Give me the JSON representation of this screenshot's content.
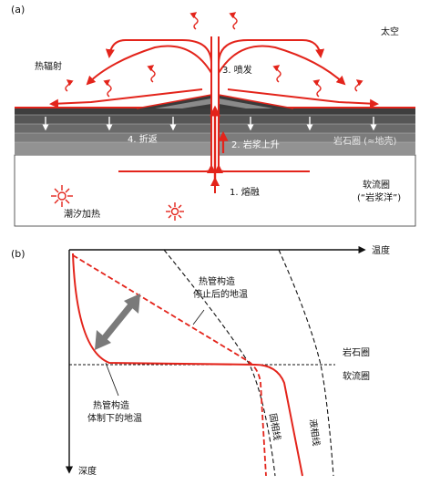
{
  "panel_a": {
    "tag": "(a)",
    "space": "太空",
    "radiation": "热辐射",
    "eruption": "3. 喷发",
    "return_flow": "4. 折返",
    "magma_rise": "2. 岩浆上升",
    "lithosphere": "岩石圈 (≈地壳)",
    "melting": "1. 熔融",
    "asthenosphere_1": "软流圈",
    "asthenosphere_2": "(“岩浆洋”)",
    "tidal_heating": "潮汐加热"
  },
  "panel_b": {
    "tag": "(b)",
    "x_axis": "温度",
    "y_axis": "深度",
    "after_1": "热管构造",
    "after_2": "停止后的地温",
    "during_1": "热管构造",
    "during_2": "体制下的地温",
    "lithosphere": "岩石圈",
    "asthenosphere": "软流圈",
    "solidus": "固相线",
    "liquidus": "液相线"
  },
  "colors": {
    "red": "#e3241b",
    "grey_arrow": "#7a7a7a",
    "layer_dark": "#4a4a4a",
    "layer_light": "#9a9a9a"
  }
}
